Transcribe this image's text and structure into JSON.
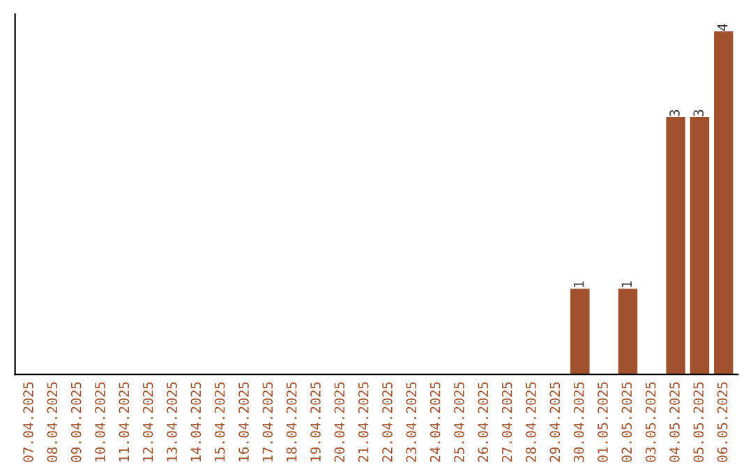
{
  "chart_data": {
    "type": "bar",
    "categories": [
      "07.04.2025",
      "08.04.2025",
      "09.04.2025",
      "10.04.2025",
      "11.04.2025",
      "12.04.2025",
      "13.04.2025",
      "14.04.2025",
      "15.04.2025",
      "16.04.2025",
      "17.04.2025",
      "18.04.2025",
      "19.04.2025",
      "20.04.2025",
      "21.04.2025",
      "22.04.2025",
      "23.04.2025",
      "24.04.2025",
      "25.04.2025",
      "26.04.2025",
      "27.04.2025",
      "28.04.2025",
      "29.04.2025",
      "30.04.2025",
      "01.05.2025",
      "02.05.2025",
      "03.05.2025",
      "04.05.2025",
      "05.05.2025",
      "06.05.2025"
    ],
    "values": [
      null,
      null,
      null,
      null,
      null,
      null,
      null,
      null,
      null,
      null,
      null,
      null,
      null,
      null,
      null,
      null,
      null,
      null,
      null,
      null,
      null,
      null,
      null,
      1,
      null,
      1,
      null,
      3,
      3,
      4
    ],
    "data_labels": true,
    "color": "#a0522d",
    "ylim": [
      0,
      4.2
    ],
    "tick_labels": "x",
    "grid": false,
    "legend": false
  }
}
